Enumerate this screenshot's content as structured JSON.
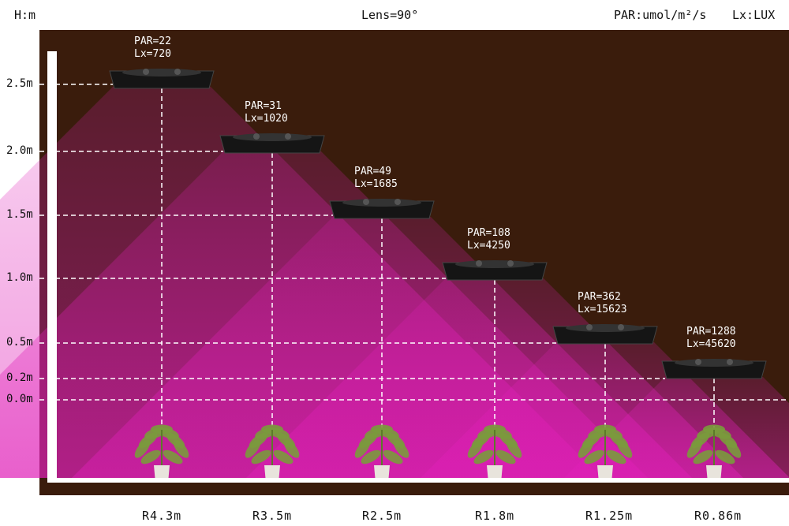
{
  "header": {
    "height_unit": "H:m",
    "lens": "Lens=90°",
    "par_unit": "PAR:umol/m²/s",
    "lux_unit": "Lx:LUX"
  },
  "height_labels": [
    "2.5m",
    "2.0m",
    "1.5m",
    "1.0m",
    "0.5m",
    "0.2m",
    "0.0m"
  ],
  "lights": [
    {
      "par": "PAR=22",
      "lux": "Lx=720",
      "range": "R4.3m"
    },
    {
      "par": "PAR=31",
      "lux": "Lx=1020",
      "range": "R3.5m"
    },
    {
      "par": "PAR=49",
      "lux": "Lx=1685",
      "range": "R2.5m"
    },
    {
      "par": "PAR=108",
      "lux": "Lx=4250",
      "range": "R1.8m"
    },
    {
      "par": "PAR=362",
      "lux": "Lx=15623",
      "range": "R1.25m"
    },
    {
      "par": "PAR=1288",
      "lux": "Lx=45620",
      "range": "R0.86m"
    }
  ],
  "colors": {
    "background": "#3a1c0c",
    "beam": "#e020b8",
    "fixture": "#151515",
    "guide_line": "#ffffff"
  }
}
